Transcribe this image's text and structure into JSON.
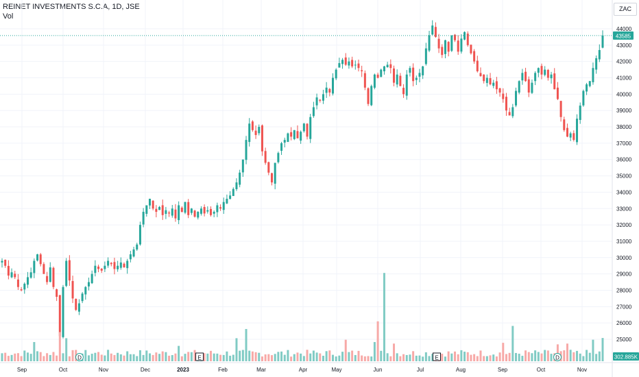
{
  "chart_data": {
    "type": "candlestick",
    "title": "REINET INVESTMENTS S.C.A, 1D, JSE",
    "volume_label": "Vol",
    "currency": "ZAC",
    "last_price": 43585,
    "last_volume": "302.885K",
    "ylim": [
      24000,
      44900
    ],
    "y_ticks": [
      25000,
      26000,
      27000,
      28000,
      29000,
      30000,
      31000,
      32000,
      33000,
      34000,
      35000,
      36000,
      37000,
      38000,
      39000,
      40000,
      41000,
      42000,
      43000,
      44000
    ],
    "x_tick_labels": [
      "Sep",
      "Oct",
      "Nov",
      "Dec",
      "2023",
      "Feb",
      "Mar",
      "Apr",
      "May",
      "Jun",
      "Jul",
      "Aug",
      "Sep",
      "Oct",
      "Nov"
    ],
    "colors": {
      "up": "#26a69a",
      "down": "#ef5350",
      "up_vol": "#80cbc4",
      "down_vol": "#f7a9a7",
      "grid": "#f0f3fa",
      "price_line": "#26a69a"
    },
    "event_markers": [
      {
        "label": "D",
        "month_index": 1
      },
      {
        "label": "E",
        "month_index": 4
      },
      {
        "label": "E",
        "month_index": 10
      },
      {
        "label": "D",
        "month_index": 13
      }
    ],
    "close_anchors": [
      [
        0,
        29800
      ],
      [
        1,
        29500
      ],
      [
        2,
        28900
      ],
      [
        3,
        29100
      ],
      [
        4,
        28800
      ],
      [
        5,
        28200
      ],
      [
        6,
        28000
      ],
      [
        7,
        28400
      ],
      [
        8,
        28800
      ],
      [
        9,
        29100
      ],
      [
        10,
        29800
      ],
      [
        11,
        30200
      ],
      [
        12,
        29600
      ],
      [
        13,
        29000
      ],
      [
        14,
        28500
      ],
      [
        15,
        29400
      ],
      [
        16,
        28200
      ],
      [
        17,
        27600
      ],
      [
        18,
        25200
      ],
      [
        19,
        28200
      ],
      [
        20,
        29800
      ],
      [
        21,
        28600
      ],
      [
        22,
        27500
      ],
      [
        23,
        26800
      ],
      [
        24,
        27200
      ],
      [
        25,
        27800
      ],
      [
        26,
        28200
      ],
      [
        27,
        28500
      ],
      [
        28,
        29000
      ],
      [
        29,
        29500
      ],
      [
        30,
        29300
      ],
      [
        31,
        29200
      ],
      [
        32,
        29500
      ],
      [
        33,
        29800
      ],
      [
        34,
        29600
      ],
      [
        35,
        29300
      ],
      [
        36,
        29500
      ],
      [
        37,
        29700
      ],
      [
        38,
        29400
      ],
      [
        39,
        29800
      ],
      [
        40,
        30200
      ],
      [
        41,
        30500
      ],
      [
        42,
        30800
      ],
      [
        43,
        32000
      ],
      [
        44,
        32800
      ],
      [
        45,
        33200
      ],
      [
        46,
        33600
      ],
      [
        47,
        33000
      ],
      [
        48,
        32800
      ],
      [
        49,
        33100
      ],
      [
        50,
        32600
      ],
      [
        51,
        32900
      ],
      [
        52,
        32700
      ],
      [
        53,
        33000
      ],
      [
        54,
        32400
      ],
      [
        55,
        33200
      ],
      [
        56,
        32800
      ],
      [
        57,
        33400
      ],
      [
        58,
        32600
      ],
      [
        59,
        33000
      ],
      [
        60,
        32500
      ],
      [
        61,
        32800
      ],
      [
        62,
        33000
      ],
      [
        63,
        32700
      ],
      [
        64,
        32900
      ],
      [
        65,
        32600
      ],
      [
        66,
        32800
      ],
      [
        67,
        33200
      ],
      [
        68,
        33000
      ],
      [
        69,
        33400
      ],
      [
        70,
        33600
      ],
      [
        71,
        33800
      ],
      [
        72,
        34200
      ],
      [
        73,
        34600
      ],
      [
        74,
        35200
      ],
      [
        75,
        36000
      ],
      [
        76,
        37200
      ],
      [
        77,
        38200
      ],
      [
        78,
        37800
      ],
      [
        79,
        37500
      ],
      [
        80,
        38000
      ],
      [
        81,
        36500
      ],
      [
        82,
        35800
      ],
      [
        83,
        35200
      ],
      [
        84,
        34600
      ],
      [
        85,
        35800
      ],
      [
        86,
        36400
      ],
      [
        87,
        37000
      ],
      [
        88,
        37200
      ],
      [
        89,
        37600
      ],
      [
        90,
        37400
      ],
      [
        91,
        37800
      ],
      [
        92,
        37300
      ],
      [
        93,
        37700
      ],
      [
        94,
        38200
      ],
      [
        95,
        37400
      ],
      [
        96,
        38600
      ],
      [
        97,
        39200
      ],
      [
        98,
        39800
      ],
      [
        99,
        39600
      ],
      [
        100,
        40000
      ],
      [
        101,
        40400
      ],
      [
        102,
        40100
      ],
      [
        103,
        41000
      ],
      [
        104,
        41500
      ],
      [
        105,
        41900
      ],
      [
        106,
        42100
      ],
      [
        107,
        41800
      ],
      [
        108,
        42000
      ],
      [
        109,
        41700
      ],
      [
        110,
        41800
      ],
      [
        111,
        41600
      ],
      [
        112,
        41400
      ],
      [
        113,
        40400
      ],
      [
        114,
        39400
      ],
      [
        115,
        40500
      ],
      [
        116,
        41200
      ],
      [
        117,
        41000
      ],
      [
        118,
        41500
      ],
      [
        119,
        41700
      ],
      [
        120,
        41800
      ],
      [
        121,
        41600
      ],
      [
        122,
        40700
      ],
      [
        123,
        41200
      ],
      [
        124,
        40500
      ],
      [
        125,
        40000
      ],
      [
        126,
        41200
      ],
      [
        127,
        41600
      ],
      [
        128,
        40800
      ],
      [
        129,
        41000
      ],
      [
        130,
        41300
      ],
      [
        131,
        41700
      ],
      [
        132,
        42800
      ],
      [
        133,
        43600
      ],
      [
        134,
        44200
      ],
      [
        135,
        43500
      ],
      [
        136,
        42800
      ],
      [
        137,
        42400
      ],
      [
        138,
        43300
      ],
      [
        139,
        42600
      ],
      [
        140,
        43600
      ],
      [
        141,
        43300
      ],
      [
        142,
        42600
      ],
      [
        143,
        43400
      ],
      [
        144,
        43800
      ],
      [
        145,
        43000
      ],
      [
        146,
        42500
      ],
      [
        147,
        42000
      ],
      [
        148,
        41400
      ],
      [
        149,
        41100
      ],
      [
        150,
        40800
      ],
      [
        151,
        41000
      ],
      [
        152,
        40600
      ],
      [
        153,
        40700
      ],
      [
        154,
        40300
      ],
      [
        155,
        40100
      ],
      [
        156,
        39700
      ],
      [
        157,
        39000
      ],
      [
        158,
        38700
      ],
      [
        159,
        39200
      ],
      [
        160,
        40200
      ],
      [
        161,
        40800
      ],
      [
        162,
        41300
      ],
      [
        163,
        40800
      ],
      [
        164,
        40100
      ],
      [
        165,
        40700
      ],
      [
        166,
        41300
      ],
      [
        167,
        41600
      ],
      [
        168,
        41200
      ],
      [
        169,
        41500
      ],
      [
        170,
        41000
      ],
      [
        171,
        41200
      ],
      [
        172,
        40300
      ],
      [
        173,
        39700
      ],
      [
        174,
        38600
      ],
      [
        175,
        37800
      ],
      [
        176,
        37400
      ],
      [
        177,
        37600
      ],
      [
        178,
        37200
      ],
      [
        179,
        38500
      ],
      [
        180,
        39300
      ],
      [
        181,
        40200
      ],
      [
        182,
        40600
      ],
      [
        183,
        40800
      ],
      [
        184,
        41600
      ],
      [
        185,
        42200
      ],
      [
        186,
        42700
      ],
      [
        187,
        43585
      ]
    ],
    "volume_anchors": [
      [
        10,
        250
      ],
      [
        18,
        380
      ],
      [
        20,
        300
      ],
      [
        55,
        200
      ],
      [
        73,
        300
      ],
      [
        76,
        420
      ],
      [
        107,
        280
      ],
      [
        116,
        250
      ],
      [
        117,
        520
      ],
      [
        119,
        1150
      ],
      [
        122,
        230
      ],
      [
        156,
        240
      ],
      [
        159,
        460
      ],
      [
        173,
        220
      ],
      [
        176,
        230
      ],
      [
        184,
        280
      ],
      [
        187,
        303
      ]
    ]
  }
}
